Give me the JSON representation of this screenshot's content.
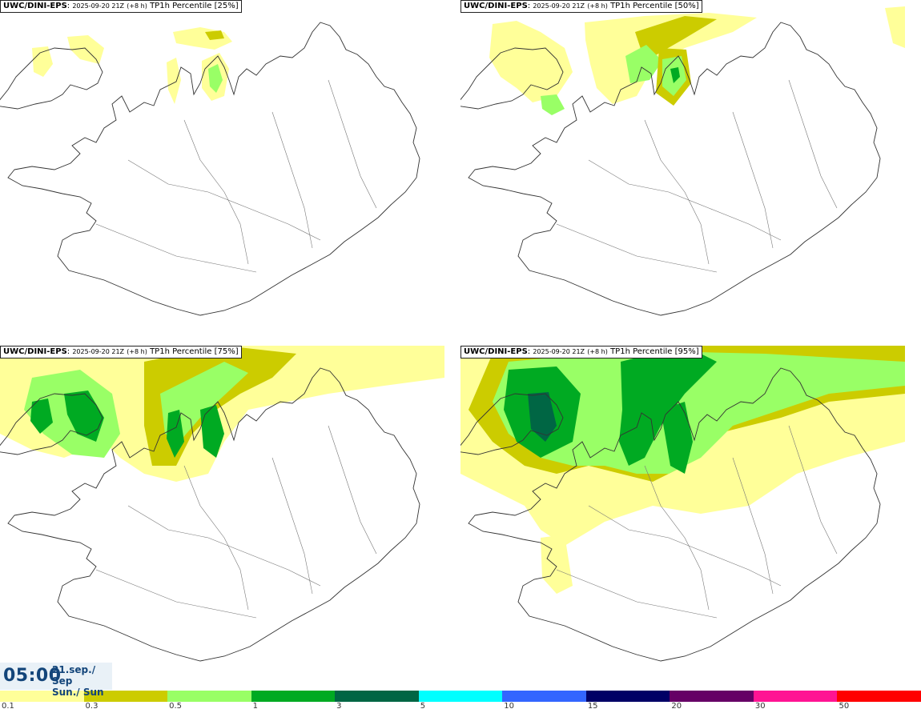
{
  "panels": [
    {
      "model": "UWC/DINI-EPS",
      "run": "2025-09-20 21Z",
      "lead": "(+8 h)",
      "field": "TP1h Percentile",
      "percentile": "[25%]",
      "intensity": 0
    },
    {
      "model": "UWC/DINI-EPS",
      "run": "2025-09-20 21Z",
      "lead": "(+8 h)",
      "field": "TP1h Percentile",
      "percentile": "[50%]",
      "intensity": 1
    },
    {
      "model": "UWC/DINI-EPS",
      "run": "2025-09-20 21Z",
      "lead": "(+8 h)",
      "field": "TP1h Percentile",
      "percentile": "[75%]",
      "intensity": 2
    },
    {
      "model": "UWC/DINI-EPS",
      "run": "2025-09-20 21Z",
      "lead": "(+8 h)",
      "field": "TP1h Percentile",
      "percentile": "[95%]",
      "intensity": 3
    }
  ],
  "valid_time": {
    "time": "05:00",
    "date_line1": "21.sep./ Sep",
    "date_line2": "Sun./ Sun"
  },
  "legend": {
    "colors": [
      "#ffff99",
      "#cccc00",
      "#99ff66",
      "#00aa22",
      "#006644",
      "#00ffff",
      "#3366ff",
      "#000066",
      "#660066",
      "#ff1493",
      "#ff0000"
    ],
    "ticks": [
      "0.1",
      "0.3",
      "0.5",
      "1",
      "3",
      "5",
      "10",
      "15",
      "20",
      "30",
      "50"
    ]
  }
}
